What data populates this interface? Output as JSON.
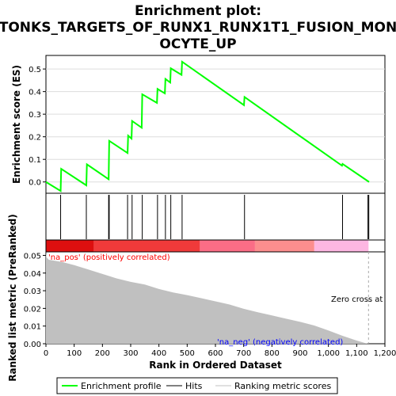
{
  "title_lines": [
    "Enrichment plot:",
    "TONKS_TARGETS_OF_RUNX1_RUNX1T1_FUSION_MON",
    "OCYTE_UP"
  ],
  "colors": {
    "profile": "#00ff00",
    "hits": "#000000",
    "metric_fill": "#c0c0c0",
    "pos_label": "#ff0000",
    "neg_label": "#0000ff",
    "zero_cross_line": "#aaaaaa"
  },
  "chart_data": [
    {
      "type": "line",
      "name": "enrichment-profile",
      "ylabel": "Enrichment score (ES)",
      "xlim": [
        0,
        1200
      ],
      "ylim": [
        -0.05,
        0.56
      ],
      "yticks": [
        0.0,
        0.1,
        0.2,
        0.3,
        0.4,
        0.5
      ],
      "yticklabels": [
        "0.0",
        "0.1",
        "0.2",
        "0.3",
        "0.4",
        "0.5"
      ],
      "x": [
        0,
        52,
        54,
        143,
        145,
        222,
        224,
        289,
        291,
        303,
        305,
        339,
        341,
        393,
        395,
        421,
        423,
        440,
        442,
        480,
        482,
        701,
        703,
        1048,
        1050,
        1144
      ],
      "y": [
        0.0,
        -0.04,
        0.058,
        -0.015,
        0.078,
        0.012,
        0.182,
        0.128,
        0.205,
        0.192,
        0.27,
        0.24,
        0.388,
        0.35,
        0.412,
        0.392,
        0.456,
        0.44,
        0.503,
        0.474,
        0.532,
        0.34,
        0.376,
        0.072,
        0.08,
        0.0
      ]
    },
    {
      "type": "hits",
      "name": "hits",
      "positions": [
        52,
        143,
        222,
        224,
        289,
        305,
        341,
        395,
        423,
        442,
        482,
        703,
        1050,
        1140,
        1143
      ]
    },
    {
      "type": "colorbar",
      "name": "rank-color-bar",
      "segments": [
        {
          "from": 0,
          "to": 170,
          "color": "#dd0f0f"
        },
        {
          "from": 170,
          "to": 545,
          "color": "#f03a3a"
        },
        {
          "from": 545,
          "to": 740,
          "color": "#fb6d86"
        },
        {
          "from": 740,
          "to": 950,
          "color": "#fc8e8e"
        },
        {
          "from": 950,
          "to": 1142,
          "color": "#fdb7e2"
        }
      ]
    },
    {
      "type": "area",
      "name": "ranked-list-metric",
      "ylabel": "Ranked list metric (PreRanked)",
      "xlabel": "Rank in Ordered Dataset",
      "xlim": [
        0,
        1200
      ],
      "ylim": [
        0,
        0.052
      ],
      "yticks": [
        0.0,
        0.01,
        0.02,
        0.03,
        0.04,
        0.05
      ],
      "yticklabels": [
        "0.00",
        "0.01",
        "0.02",
        "0.03",
        "0.04",
        "0.05"
      ],
      "xticks": [
        0,
        100,
        200,
        300,
        400,
        500,
        600,
        700,
        800,
        900,
        1000,
        1100,
        1200
      ],
      "xticklabels": [
        "0",
        "100",
        "200",
        "300",
        "400",
        "500",
        "600",
        "700",
        "800",
        "900",
        "1,000",
        "1,100",
        "1,200"
      ],
      "x": [
        0,
        2,
        10,
        30,
        60,
        100,
        150,
        200,
        250,
        300,
        350,
        400,
        450,
        500,
        550,
        600,
        650,
        700,
        750,
        800,
        850,
        900,
        950,
        1000,
        1050,
        1100,
        1130,
        1142
      ],
      "y": [
        0.052,
        0.049,
        0.0475,
        0.047,
        0.0462,
        0.0445,
        0.042,
        0.0395,
        0.037,
        0.035,
        0.0335,
        0.031,
        0.029,
        0.0275,
        0.0258,
        0.024,
        0.0222,
        0.0198,
        0.0178,
        0.016,
        0.0142,
        0.0124,
        0.0103,
        0.0075,
        0.0045,
        0.0018,
        0.0004,
        0.0
      ],
      "zero_cross": 1142,
      "annotations": {
        "pos": "'na_pos' (positively correlated)",
        "neg": "'na_neg' (negatively correlated)",
        "zero_cross": "Zero cross at"
      }
    }
  ],
  "legend": {
    "items": [
      {
        "label": "Enrichment profile",
        "color": "#00ff00"
      },
      {
        "label": "Hits",
        "color": "#000000"
      },
      {
        "label": "Ranking metric scores",
        "color": "#c0c0c0"
      }
    ]
  }
}
